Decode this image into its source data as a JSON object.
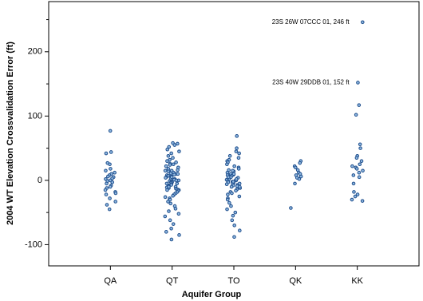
{
  "chart_data": {
    "type": "strip",
    "xlabel": "Aquifer Group",
    "ylabel": "2004 WT Elevation Crossvalidation Error (ft)",
    "categories": [
      "QA",
      "QT",
      "TO",
      "QK",
      "KK"
    ],
    "color": "#1f4e8c",
    "fill": "#8fb8e0",
    "ylim": [
      -133,
      278
    ],
    "yticks": [
      -100,
      0,
      100,
      200
    ],
    "minor_yticks": [
      -50,
      50,
      150,
      250
    ],
    "values": [
      [
        77,
        44,
        42,
        27,
        25,
        18,
        15,
        12,
        10,
        8,
        6,
        5,
        3,
        2,
        0,
        -1,
        -3,
        -5,
        -8,
        -10,
        -12,
        -15,
        -18,
        -20,
        -22,
        -28,
        -33,
        -38,
        -45
      ],
      [
        58,
        55,
        52,
        48,
        45,
        42,
        38,
        35,
        32,
        30,
        28,
        26,
        24,
        22,
        20,
        18,
        16,
        15,
        14,
        12,
        11,
        10,
        9,
        8,
        7,
        6,
        5,
        4,
        3,
        2,
        1,
        0,
        -1,
        -2,
        -3,
        -4,
        -5,
        -6,
        -7,
        -8,
        -9,
        -10,
        -11,
        -12,
        -13,
        -14,
        -15,
        -16,
        -18,
        -20,
        -22,
        -24,
        -26,
        -28,
        -30,
        -33,
        -36,
        -40,
        -44,
        -48,
        -52,
        -56,
        -62,
        -68,
        -75,
        -80,
        -85,
        -92,
        57,
        25,
        5,
        -5,
        0,
        10,
        -10,
        15,
        -15
      ],
      [
        69,
        50,
        45,
        42,
        38,
        35,
        32,
        30,
        28,
        25,
        22,
        20,
        18,
        16,
        14,
        12,
        10,
        9,
        8,
        7,
        6,
        5,
        4,
        3,
        2,
        1,
        0,
        -1,
        -2,
        -3,
        -4,
        -5,
        -6,
        -7,
        -8,
        -9,
        -10,
        -12,
        -14,
        -16,
        -18,
        -20,
        -22,
        -25,
        -28,
        -30,
        -35,
        -40,
        -45,
        -50,
        -55,
        -62,
        -70,
        -78,
        -88,
        15,
        5,
        -5,
        0,
        10,
        -10,
        2,
        -2
      ],
      [
        30,
        27,
        22,
        20,
        16,
        12,
        10,
        8,
        6,
        4,
        2,
        -5,
        -43
      ],
      [
        246,
        152,
        117,
        102,
        56,
        50,
        38,
        35,
        30,
        25,
        22,
        20,
        18,
        15,
        12,
        8,
        5,
        -5,
        -18,
        -22,
        -25,
        -30,
        -32
      ]
    ],
    "annotations": [
      "23S 26W 07CCC 01, 246 ft",
      "23S 40W 29DDB 01, 152 ft"
    ]
  }
}
